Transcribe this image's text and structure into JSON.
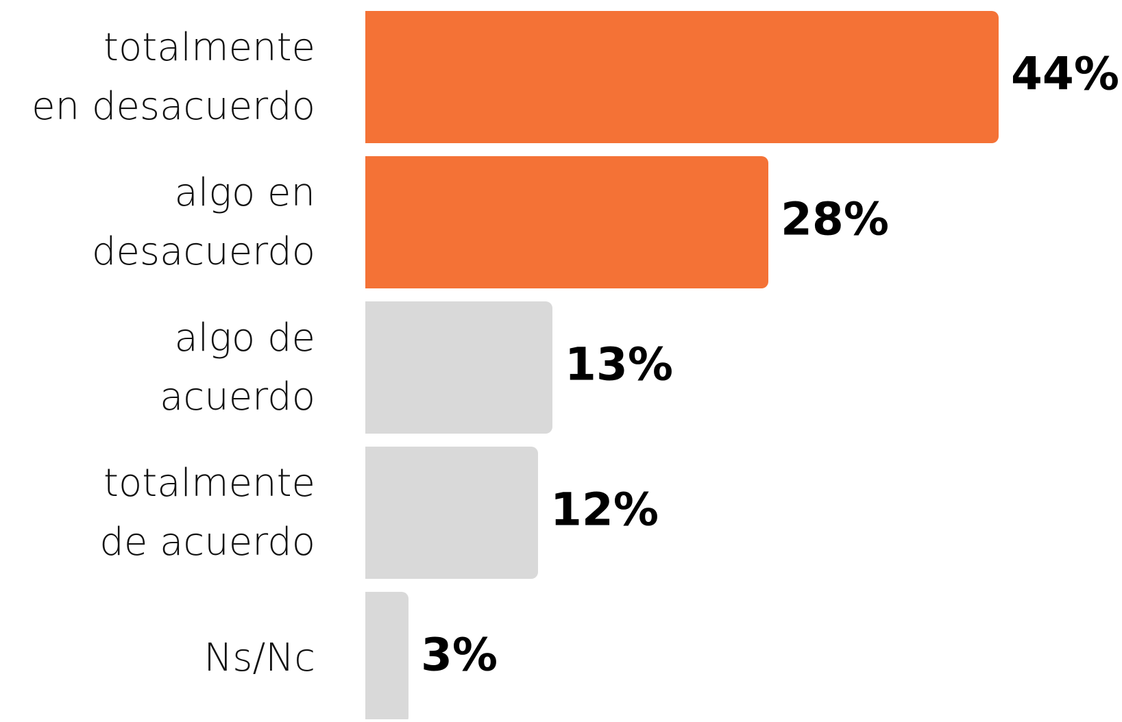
{
  "chart_data": {
    "type": "bar",
    "orientation": "horizontal",
    "categories": [
      "totalmente\nen desacuerdo",
      "algo en\ndesacuerdo",
      "algo de\nacuerdo",
      "totalmente\nde acuerdo",
      "Ns/Nc"
    ],
    "values": [
      44,
      28,
      13,
      12,
      3
    ],
    "value_labels": [
      "44%",
      "28%",
      "13%",
      "12%",
      "3%"
    ],
    "colors": [
      "#f47236",
      "#f47236",
      "#d9d9d9",
      "#d9d9d9",
      "#d9d9d9"
    ]
  }
}
